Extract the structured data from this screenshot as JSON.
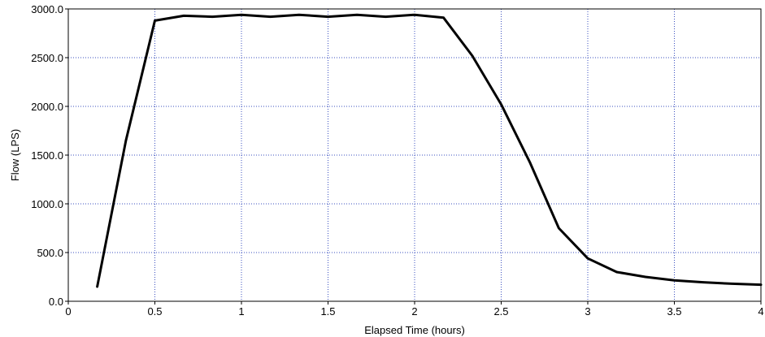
{
  "chart_data": {
    "type": "line",
    "title": "",
    "xlabel": "Elapsed Time (hours)",
    "ylabel": "Flow (LPS)",
    "xlim": [
      0,
      4
    ],
    "ylim": [
      0,
      3000
    ],
    "xticks": [
      "0",
      "0.5",
      "1",
      "1.5",
      "2",
      "2.5",
      "3",
      "3.5",
      "4"
    ],
    "yticks": [
      "0.0",
      "500.0",
      "1000.0",
      "1500.0",
      "2000.0",
      "2500.0",
      "3000.0"
    ],
    "grid": true,
    "legend": "none",
    "series": [
      {
        "color": "#000000",
        "x": [
          0.167,
          0.333,
          0.5,
          0.667,
          0.833,
          1.0,
          1.167,
          1.333,
          1.5,
          1.667,
          1.833,
          2.0,
          2.167,
          2.333,
          2.5,
          2.667,
          2.833,
          3.0,
          3.167,
          3.333,
          3.5,
          3.667,
          3.833,
          4.0
        ],
        "y": [
          150,
          1650,
          2880,
          2930,
          2920,
          2940,
          2920,
          2940,
          2920,
          2940,
          2920,
          2940,
          2910,
          2520,
          2020,
          1420,
          750,
          440,
          300,
          250,
          215,
          195,
          180,
          170
        ]
      }
    ],
    "colors": {
      "grid": "#3a4fbf",
      "axis": "#000000",
      "line": "#000000",
      "background": "#ffffff"
    }
  }
}
